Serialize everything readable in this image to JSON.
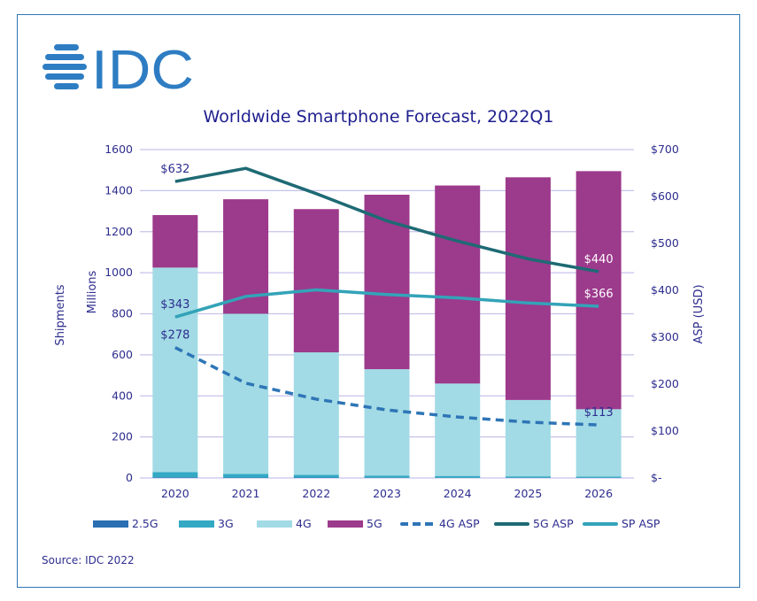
{
  "logo": {
    "text": "IDC",
    "color": "#2e7dc3"
  },
  "source": "Source: IDC 2022",
  "colors": {
    "g25": "#2a6fb2",
    "g3": "#33a9c4",
    "g4": "#a2dbe5",
    "g5": "#9c3a8c",
    "asp4g": "#2e75b6",
    "asp5g": "#1e6a74",
    "aspsp": "#33a3b8",
    "grid": "#c6c3ea",
    "text": "#2d2d8f"
  },
  "chart_data": {
    "type": "bar",
    "subtype": "stacked-bar-with-lines",
    "title": "Worldwide Smartphone Forecast, 2022Q1",
    "xlabel": "",
    "ylabel": "Shipments",
    "ylabel2": "Millions",
    "y2label": "ASP (USD)",
    "ylim": [
      0,
      1600
    ],
    "y2lim": [
      0,
      700
    ],
    "yticks": [
      "0",
      "200",
      "400",
      "600",
      "800",
      "1000",
      "1200",
      "1400",
      "1600"
    ],
    "y2ticks": [
      "$-",
      "$100",
      "$200",
      "$300",
      "$400",
      "$500",
      "$600",
      "$700"
    ],
    "grid": true,
    "legend_position": "bottom",
    "categories": [
      "2020",
      "2021",
      "2022",
      "2023",
      "2024",
      "2025",
      "2026"
    ],
    "series": [
      {
        "name": "2.5G",
        "kind": "bar",
        "axis": "left",
        "values": [
          3,
          2,
          2,
          1,
          1,
          1,
          1
        ]
      },
      {
        "name": "3G",
        "kind": "bar",
        "axis": "left",
        "values": [
          25,
          18,
          13,
          11,
          9,
          7,
          6
        ]
      },
      {
        "name": "4G",
        "kind": "bar",
        "axis": "left",
        "values": [
          997,
          780,
          597,
          518,
          450,
          372,
          328
        ]
      },
      {
        "name": "5G",
        "kind": "bar",
        "axis": "left",
        "values": [
          256,
          558,
          698,
          850,
          965,
          1085,
          1160
        ]
      },
      {
        "name": "4G ASP",
        "kind": "line",
        "style": "dashed",
        "axis": "right",
        "values": [
          278,
          202,
          168,
          145,
          130,
          119,
          113
        ]
      },
      {
        "name": "5G ASP",
        "kind": "line",
        "style": "solid",
        "axis": "right",
        "values": [
          632,
          660,
          606,
          548,
          505,
          467,
          440
        ]
      },
      {
        "name": "SP ASP",
        "kind": "line",
        "style": "solid",
        "axis": "right",
        "values": [
          343,
          387,
          401,
          391,
          384,
          373,
          366
        ]
      }
    ],
    "annotations": [
      {
        "series": "5G ASP",
        "index": 0,
        "text": "$632"
      },
      {
        "series": "5G ASP",
        "index": 6,
        "text": "$440"
      },
      {
        "series": "SP ASP",
        "index": 0,
        "text": "$343"
      },
      {
        "series": "SP ASP",
        "index": 6,
        "text": "$366"
      },
      {
        "series": "4G ASP",
        "index": 0,
        "text": "$278"
      },
      {
        "series": "4G ASP",
        "index": 6,
        "text": "$113"
      }
    ]
  }
}
